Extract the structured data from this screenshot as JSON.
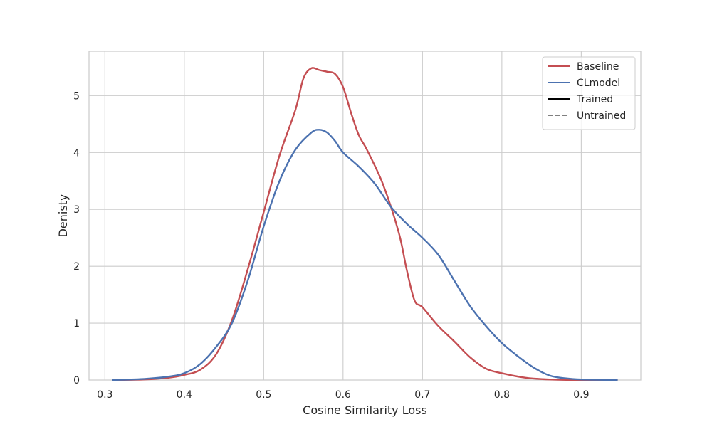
{
  "chart_data": {
    "type": "line",
    "title": "",
    "xlabel": "Cosine Similarity Loss",
    "ylabel": "Denisty",
    "xlim": [
      0.28,
      0.975
    ],
    "ylim": [
      0,
      5.78
    ],
    "x_ticks": [
      "0.3",
      "0.4",
      "0.5",
      "0.6",
      "0.7",
      "0.8",
      "0.9"
    ],
    "x_tick_values": [
      0.3,
      0.4,
      0.5,
      0.6,
      0.7,
      0.8,
      0.9
    ],
    "y_ticks": [
      "0",
      "1",
      "2",
      "3",
      "4",
      "5"
    ],
    "y_tick_values": [
      0,
      1,
      2,
      3,
      4,
      5
    ],
    "grid": true,
    "legend_position": "top-right",
    "legend": [
      {
        "label": "Baseline",
        "color": "#c44e52",
        "style": "solid"
      },
      {
        "label": "CLmodel",
        "color": "#4c72b0",
        "style": "solid"
      },
      {
        "label": "Trained",
        "color": "#000000",
        "style": "solid"
      },
      {
        "label": "Untrained",
        "color": "#808080",
        "style": "dashed"
      }
    ],
    "series": [
      {
        "name": "Baseline",
        "color": "#c44e52",
        "x": [
          0.31,
          0.35,
          0.38,
          0.4,
          0.42,
          0.44,
          0.46,
          0.48,
          0.5,
          0.52,
          0.54,
          0.55,
          0.56,
          0.57,
          0.58,
          0.59,
          0.6,
          0.61,
          0.62,
          0.63,
          0.65,
          0.67,
          0.68,
          0.69,
          0.7,
          0.72,
          0.74,
          0.76,
          0.78,
          0.8,
          0.83,
          0.86,
          0.9,
          0.945
        ],
        "y": [
          0.0,
          0.01,
          0.04,
          0.09,
          0.18,
          0.45,
          1.05,
          1.95,
          2.95,
          3.95,
          4.75,
          5.3,
          5.48,
          5.45,
          5.42,
          5.38,
          5.15,
          4.7,
          4.3,
          4.05,
          3.45,
          2.6,
          1.95,
          1.4,
          1.28,
          0.95,
          0.68,
          0.4,
          0.2,
          0.12,
          0.04,
          0.01,
          0.0,
          0.0
        ]
      },
      {
        "name": "CLmodel",
        "color": "#4c72b0",
        "x": [
          0.31,
          0.35,
          0.38,
          0.4,
          0.42,
          0.44,
          0.46,
          0.48,
          0.5,
          0.52,
          0.54,
          0.56,
          0.57,
          0.58,
          0.59,
          0.6,
          0.62,
          0.64,
          0.66,
          0.68,
          0.7,
          0.72,
          0.74,
          0.76,
          0.78,
          0.8,
          0.82,
          0.84,
          0.86,
          0.88,
          0.9,
          0.945
        ],
        "y": [
          0.0,
          0.02,
          0.06,
          0.12,
          0.28,
          0.58,
          1.0,
          1.75,
          2.7,
          3.5,
          4.05,
          4.35,
          4.4,
          4.35,
          4.2,
          4.0,
          3.75,
          3.45,
          3.05,
          2.75,
          2.5,
          2.2,
          1.75,
          1.3,
          0.95,
          0.65,
          0.42,
          0.22,
          0.08,
          0.03,
          0.01,
          0.0
        ]
      }
    ]
  }
}
